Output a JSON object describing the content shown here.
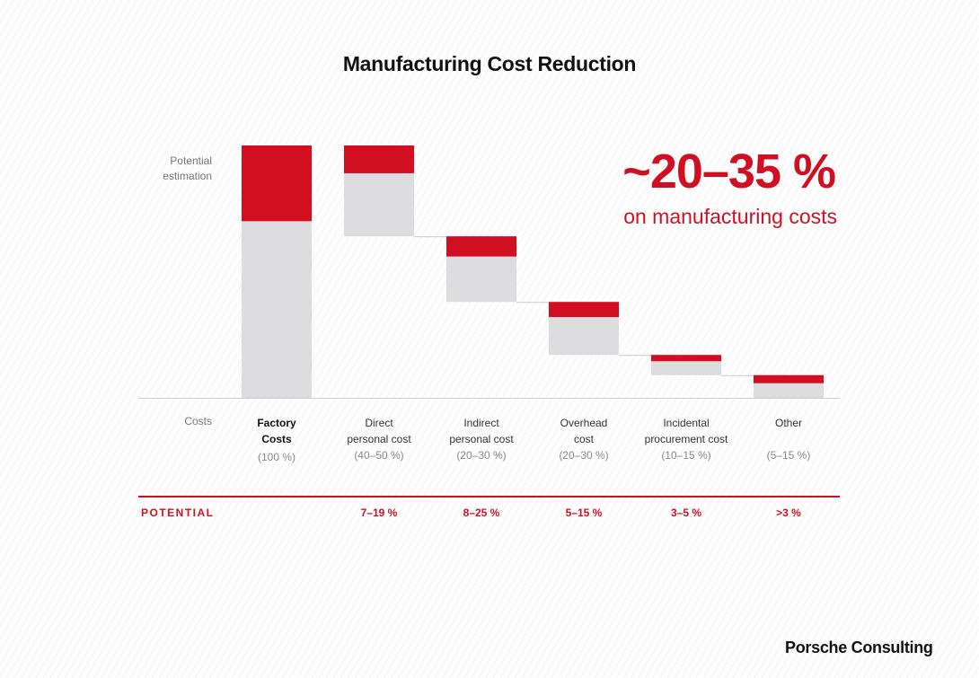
{
  "colors": {
    "potential": "#d20f21",
    "base": "#dddde0",
    "axis": "#cccccc"
  },
  "logo": "Porsche Consulting",
  "chart_data": {
    "type": "waterfall",
    "title": "Manufacturing Cost Reduction",
    "ylabel": "Potential estimation",
    "xlabel": "Costs",
    "headline": "~20–35 %",
    "subheadline": "on manufacturing costs",
    "row_label": "POTENTIAL",
    "units": "relative (Factory Costs = 100), schematic",
    "categories": [
      {
        "name_lines": [
          "Factory",
          "Costs"
        ],
        "share": "(100 %)",
        "bold": true,
        "start": 100,
        "end": 0,
        "potential": 30,
        "potential_label": ""
      },
      {
        "name_lines": [
          "Direct",
          "personal cost"
        ],
        "share": "(40–50 %)",
        "bold": false,
        "start": 100,
        "end": 64,
        "potential": 11,
        "potential_label": "7–19 %"
      },
      {
        "name_lines": [
          "Indirect",
          "personal cost"
        ],
        "share": "(20–30 %)",
        "bold": false,
        "start": 64,
        "end": 38,
        "potential": 8,
        "potential_label": "8–25 %"
      },
      {
        "name_lines": [
          "Overhead",
          "cost"
        ],
        "share": "(20–30 %)",
        "bold": false,
        "start": 38,
        "end": 17,
        "potential": 6,
        "potential_label": "5–15 %"
      },
      {
        "name_lines": [
          "Incidental",
          "procurement cost"
        ],
        "share": "(10–15 %)",
        "bold": false,
        "start": 17,
        "end": 9,
        "potential": 2.5,
        "potential_label": "3–5 %"
      },
      {
        "name_lines": [
          "Other",
          ""
        ],
        "share": "(5–15 %)",
        "bold": false,
        "start": 9,
        "end": 0,
        "potential": 3.2,
        "potential_label": ">3 %"
      }
    ],
    "ylim": [
      0,
      100
    ],
    "grid": false
  }
}
